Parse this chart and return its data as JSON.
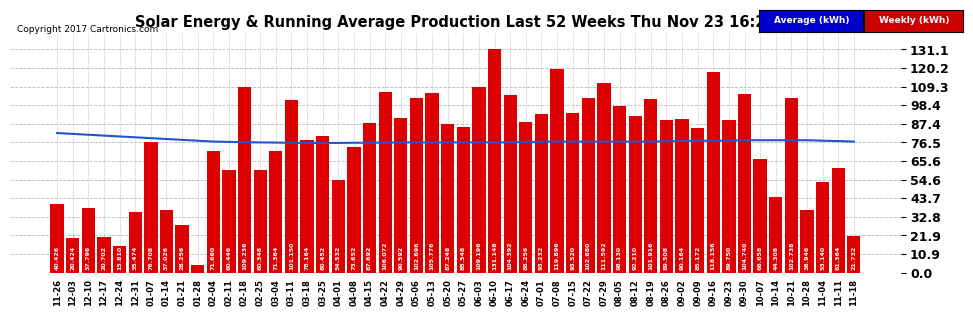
{
  "title": "Solar Energy & Running Average Production Last 52 Weeks Thu Nov 23 16:27",
  "copyright": "Copyright 2017 Cartronics.com",
  "yticks": [
    0.0,
    10.9,
    21.9,
    32.8,
    43.7,
    54.6,
    65.6,
    76.5,
    87.4,
    98.4,
    109.3,
    120.2,
    131.1
  ],
  "ymax": 141.0,
  "bar_color": "#dd0000",
  "avg_color": "#2255cc",
  "legend_avg_bg": "#0000cc",
  "legend_weekly_bg": "#cc0000",
  "background_color": "#ffffff",
  "grid_color": "#bbbbbb",
  "categories": [
    "11-26",
    "12-03",
    "12-10",
    "12-17",
    "12-24",
    "12-31",
    "01-07",
    "01-14",
    "01-21",
    "01-28",
    "02-04",
    "02-11",
    "02-18",
    "02-25",
    "03-04",
    "03-11",
    "03-18",
    "03-25",
    "04-01",
    "04-08",
    "04-15",
    "04-22",
    "04-29",
    "05-06",
    "05-13",
    "05-20",
    "05-27",
    "06-03",
    "06-10",
    "06-17",
    "06-24",
    "07-01",
    "07-08",
    "07-15",
    "07-22",
    "07-29",
    "08-05",
    "08-12",
    "08-19",
    "08-26",
    "09-02",
    "09-09",
    "09-16",
    "09-23",
    "09-30",
    "10-07",
    "10-14",
    "10-21",
    "10-28",
    "11-04",
    "11-11",
    "11-18"
  ],
  "weekly_values": [
    40.426,
    20.424,
    37.796,
    20.702,
    15.81,
    35.474,
    76.708,
    37.026,
    28.256,
    4.312,
    71.66,
    60.446,
    109.236,
    60.348,
    71.364,
    101.15,
    78.164,
    80.452,
    54.532,
    73.652,
    87.692,
    106.072,
    90.592,
    102.696,
    105.776,
    87.248,
    85.548,
    109.196,
    131.148,
    104.392,
    88.256,
    93.232,
    119.896,
    93.52,
    102.68,
    111.592,
    98.13,
    92.21,
    101.916,
    89.508,
    90.164,
    85.172,
    118.156,
    89.75,
    104.74,
    66.658,
    44.308,
    102.738,
    36.946,
    53.14,
    61.364,
    21.732
  ],
  "avg_values": [
    82.0,
    81.5,
    81.0,
    80.5,
    80.0,
    79.5,
    79.0,
    78.5,
    78.0,
    77.5,
    77.0,
    76.8,
    76.6,
    76.5,
    76.4,
    76.3,
    76.2,
    76.2,
    76.2,
    76.3,
    76.3,
    76.4,
    76.5,
    76.5,
    76.5,
    76.5,
    76.5,
    76.5,
    76.5,
    76.5,
    76.8,
    76.8,
    77.0,
    77.0,
    77.0,
    77.0,
    77.0,
    77.0,
    77.0,
    77.2,
    77.3,
    77.5,
    77.5,
    77.5,
    77.8,
    77.8,
    77.8,
    77.8,
    77.8,
    77.5,
    77.3,
    77.0
  ]
}
